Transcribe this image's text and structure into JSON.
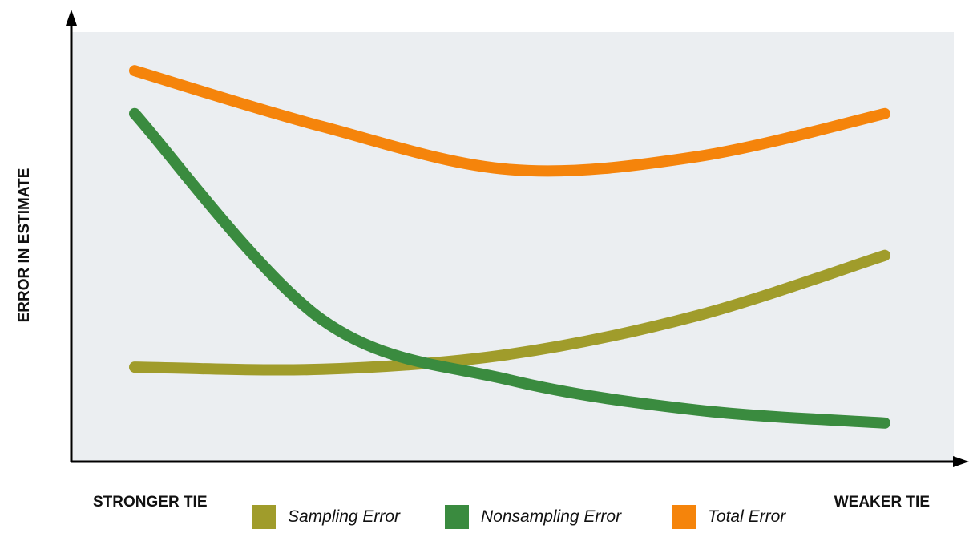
{
  "chart_data": {
    "type": "line",
    "xlabel": "",
    "ylabel": "ERROR IN ESTIMATE",
    "x_tick_labels": [
      "STRONGER TIE",
      "WEAKER TIE"
    ],
    "x": [
      0,
      0.25,
      0.5,
      0.75,
      1
    ],
    "xlim": [
      0,
      1
    ],
    "ylim": [
      0,
      1
    ],
    "grid": false,
    "legend_position": "bottom",
    "series": [
      {
        "name": "Sampling Error",
        "color": "#a09c2b",
        "values": [
          0.22,
          0.215,
          0.25,
          0.34,
          0.48
        ]
      },
      {
        "name": "Nonsampling Error",
        "color": "#3a8b3f",
        "values": [
          0.81,
          0.33,
          0.19,
          0.12,
          0.09
        ]
      },
      {
        "name": "Total Error",
        "color": "#f5840b",
        "values": [
          0.91,
          0.78,
          0.68,
          0.71,
          0.81
        ]
      }
    ]
  }
}
